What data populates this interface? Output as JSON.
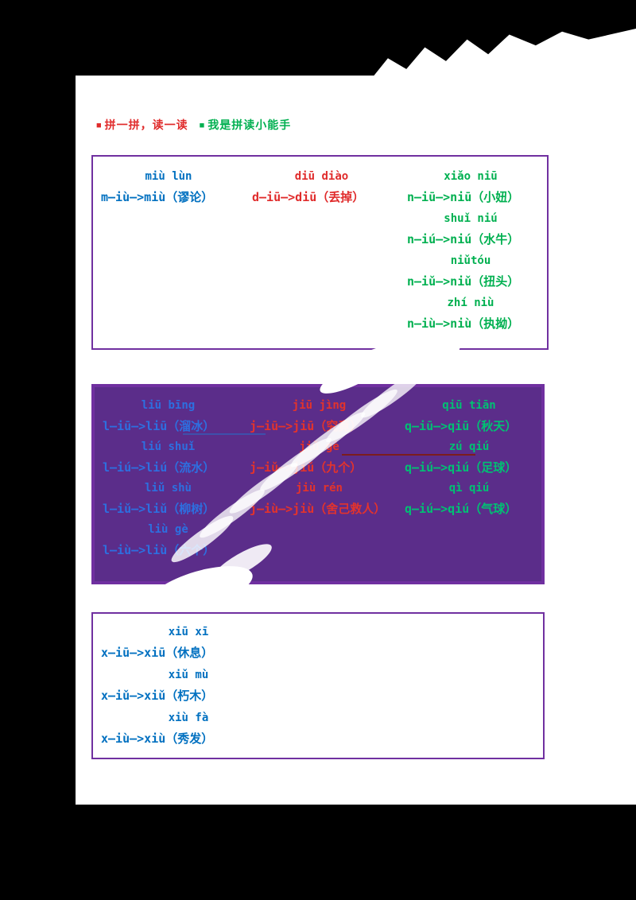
{
  "colors": {
    "background": "#000000",
    "paper": "#ffffff",
    "box_border_purple": "#7030a0",
    "box2_fill_purple": "#5b2d8a",
    "text_blue": "#0070c0",
    "text_red": "#e02b2b",
    "text_green": "#00b050",
    "annotation_dark_red": "#7c1d1d"
  },
  "title": {
    "red_bullet": "■",
    "red_text": "拼一拼，读一读",
    "green_bullet": "■",
    "green_text": "我是拼读小能手"
  },
  "box1": {
    "columns": [
      {
        "color": "blue",
        "rows": [
          {
            "label": "miù lùn",
            "formula": "m—iù—>miù（谬论）"
          }
        ]
      },
      {
        "color": "red",
        "rows": [
          {
            "label": "diū diào",
            "formula": "d—iū—>diū（丢掉）"
          }
        ]
      },
      {
        "color": "green",
        "rows": [
          {
            "label": "xiǎo niū",
            "formula": "n—iū—>niū（小妞）"
          },
          {
            "label": "shuǐ niú",
            "formula": "n—iú—>niú（水牛）"
          },
          {
            "label": "niǔtóu",
            "formula": "n—iǔ—>niǔ（扭头）"
          },
          {
            "label": "zhí niù",
            "formula": "n—iù—>niù（执拗）"
          }
        ]
      }
    ]
  },
  "box2": {
    "columns": [
      {
        "color": "blue",
        "rows": [
          {
            "label": "liū bīng",
            "formula": "l—iū—>liū（溜冰）"
          },
          {
            "label": "liú shuǐ",
            "formula": "l—iú—>liú（流水）"
          },
          {
            "label": "liǔ shù",
            "formula": "l—iǔ—>liǔ（柳树）"
          },
          {
            "label": "liù gè",
            "formula": "l—iù—>liù（六个）"
          }
        ]
      },
      {
        "color": "red",
        "rows": [
          {
            "label": "jiū jìng",
            "formula": "j—iū—>jiū（究竟）"
          },
          {
            "label": "jiǔ gè",
            "formula": "j—iǔ—>jiǔ（九个）"
          },
          {
            "label": "jiù rén",
            "formula": "j—iù—>jiù（舍己救人）"
          }
        ]
      },
      {
        "color": "green",
        "rows": [
          {
            "label": "qiū tiān",
            "formula": "q—iū—>qiū（秋天）"
          },
          {
            "label": "zú qiú",
            "formula": "q—iú—>qiú（足球）"
          },
          {
            "label": "qì qiú",
            "formula": "q—iú—>qiú（气球）"
          }
        ]
      }
    ]
  },
  "box3": {
    "rows": [
      {
        "label": "xiū xī",
        "formula": "x—iū—>xiū（休息）"
      },
      {
        "label": "xiǔ mù",
        "formula": "x—iǔ—>xiǔ（朽木）"
      },
      {
        "label": "xiù fà",
        "formula": "x—iù—>xiù（秀发）"
      }
    ]
  }
}
